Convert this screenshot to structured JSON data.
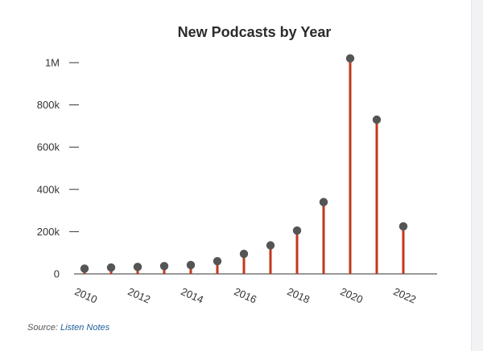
{
  "colors": {
    "stem": "#c0391b",
    "marker": "#555555",
    "axis": "#333333",
    "link": "#1f5f99"
  },
  "source": {
    "label": "Source:",
    "link_text": "Listen Notes"
  },
  "chart_data": {
    "type": "lollipop",
    "title": "New Podcasts by Year",
    "xlabel": "",
    "ylabel": "",
    "x": [
      2010,
      2011,
      2012,
      2013,
      2014,
      2015,
      2016,
      2017,
      2018,
      2019,
      2020,
      2021,
      2022
    ],
    "values": [
      25000,
      30000,
      33000,
      37000,
      42000,
      60000,
      95000,
      135000,
      205000,
      340000,
      1020000,
      730000,
      225000
    ],
    "ylim": [
      0,
      1000000
    ],
    "y_ticks": [
      {
        "value": 0,
        "label": "0"
      },
      {
        "value": 200000,
        "label": "200k"
      },
      {
        "value": 400000,
        "label": "400k"
      },
      {
        "value": 600000,
        "label": "600k"
      },
      {
        "value": 800000,
        "label": "800k"
      },
      {
        "value": 1000000,
        "label": "1M"
      }
    ],
    "x_tick_labels": [
      "2010",
      "2012",
      "2014",
      "2016",
      "2018",
      "2020",
      "2022"
    ],
    "grid": false,
    "legend": "none"
  }
}
